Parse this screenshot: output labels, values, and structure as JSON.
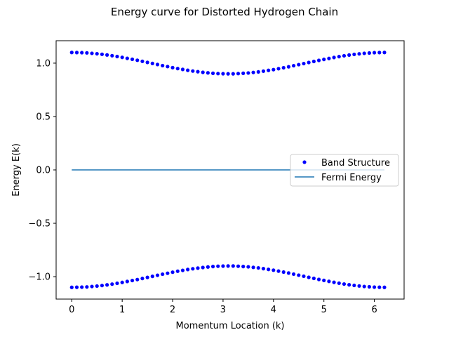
{
  "chart_data": {
    "type": "scatter",
    "title": "Energy curve for Distorted Hydrogen Chain",
    "xlabel": "Momentum Location (k)",
    "ylabel": "Energy E(k)",
    "xlim": [
      -0.31,
      6.59
    ],
    "ylim": [
      -1.21,
      1.21
    ],
    "xticks": [
      0,
      1,
      2,
      3,
      4,
      5,
      6
    ],
    "xtick_labels": [
      "0",
      "1",
      "2",
      "3",
      "4",
      "5",
      "6"
    ],
    "yticks": [
      -1.0,
      -0.5,
      0.0,
      0.5,
      1.0
    ],
    "ytick_labels": [
      "−1.0",
      "−0.5",
      "0.0",
      "0.5",
      "1.0"
    ],
    "grid": false,
    "legend_position": "center-right",
    "band": {
      "name": "Band Structure",
      "color": "#0000ff",
      "upper": [
        [
          0.0,
          1.1
        ],
        [
          0.1,
          1.099
        ],
        [
          0.2,
          1.098
        ],
        [
          0.3,
          1.096
        ],
        [
          0.4,
          1.092
        ],
        [
          0.5,
          1.088
        ],
        [
          0.6,
          1.083
        ],
        [
          0.7,
          1.077
        ],
        [
          0.8,
          1.07
        ],
        [
          0.9,
          1.062
        ],
        [
          1.0,
          1.054
        ],
        [
          1.1,
          1.045
        ],
        [
          1.2,
          1.036
        ],
        [
          1.3,
          1.027
        ],
        [
          1.4,
          1.017
        ],
        [
          1.5,
          1.007
        ],
        [
          1.6,
          0.997
        ],
        [
          1.7,
          0.987
        ],
        [
          1.8,
          0.977
        ],
        [
          1.9,
          0.968
        ],
        [
          2.0,
          0.958
        ],
        [
          2.1,
          0.949
        ],
        [
          2.2,
          0.941
        ],
        [
          2.3,
          0.933
        ],
        [
          2.4,
          0.926
        ],
        [
          2.5,
          0.92
        ],
        [
          2.6,
          0.914
        ],
        [
          2.7,
          0.909
        ],
        [
          2.8,
          0.905
        ],
        [
          2.9,
          0.902
        ],
        [
          3.0,
          0.901
        ],
        [
          3.1,
          0.9
        ],
        [
          3.2,
          0.9
        ],
        [
          3.3,
          0.902
        ],
        [
          3.4,
          0.905
        ],
        [
          3.5,
          0.908
        ],
        [
          3.6,
          0.913
        ],
        [
          3.7,
          0.918
        ],
        [
          3.8,
          0.925
        ],
        [
          3.9,
          0.932
        ],
        [
          4.0,
          0.939
        ],
        [
          4.1,
          0.948
        ],
        [
          4.2,
          0.957
        ],
        [
          4.3,
          0.966
        ],
        [
          4.4,
          0.976
        ],
        [
          4.5,
          0.986
        ],
        [
          4.6,
          0.996
        ],
        [
          4.7,
          1.006
        ],
        [
          4.8,
          1.016
        ],
        [
          4.9,
          1.026
        ],
        [
          5.0,
          1.035
        ],
        [
          5.1,
          1.044
        ],
        [
          5.2,
          1.053
        ],
        [
          5.3,
          1.061
        ],
        [
          5.4,
          1.069
        ],
        [
          5.5,
          1.076
        ],
        [
          5.6,
          1.082
        ],
        [
          5.7,
          1.087
        ],
        [
          5.8,
          1.092
        ],
        [
          5.9,
          1.095
        ],
        [
          6.0,
          1.098
        ],
        [
          6.1,
          1.099
        ],
        [
          6.2,
          1.1
        ]
      ],
      "lower": [
        [
          0.0,
          -1.1
        ],
        [
          0.1,
          -1.099
        ],
        [
          0.2,
          -1.098
        ],
        [
          0.3,
          -1.096
        ],
        [
          0.4,
          -1.092
        ],
        [
          0.5,
          -1.088
        ],
        [
          0.6,
          -1.083
        ],
        [
          0.7,
          -1.077
        ],
        [
          0.8,
          -1.07
        ],
        [
          0.9,
          -1.062
        ],
        [
          1.0,
          -1.054
        ],
        [
          1.1,
          -1.045
        ],
        [
          1.2,
          -1.036
        ],
        [
          1.3,
          -1.027
        ],
        [
          1.4,
          -1.017
        ],
        [
          1.5,
          -1.007
        ],
        [
          1.6,
          -0.997
        ],
        [
          1.7,
          -0.987
        ],
        [
          1.8,
          -0.977
        ],
        [
          1.9,
          -0.968
        ],
        [
          2.0,
          -0.958
        ],
        [
          2.1,
          -0.949
        ],
        [
          2.2,
          -0.941
        ],
        [
          2.3,
          -0.933
        ],
        [
          2.4,
          -0.926
        ],
        [
          2.5,
          -0.92
        ],
        [
          2.6,
          -0.914
        ],
        [
          2.7,
          -0.909
        ],
        [
          2.8,
          -0.905
        ],
        [
          2.9,
          -0.902
        ],
        [
          3.0,
          -0.901
        ],
        [
          3.1,
          -0.9
        ],
        [
          3.2,
          -0.9
        ],
        [
          3.3,
          -0.902
        ],
        [
          3.4,
          -0.905
        ],
        [
          3.5,
          -0.908
        ],
        [
          3.6,
          -0.913
        ],
        [
          3.7,
          -0.918
        ],
        [
          3.8,
          -0.925
        ],
        [
          3.9,
          -0.932
        ],
        [
          4.0,
          -0.939
        ],
        [
          4.1,
          -0.948
        ],
        [
          4.2,
          -0.957
        ],
        [
          4.3,
          -0.966
        ],
        [
          4.4,
          -0.976
        ],
        [
          4.5,
          -0.986
        ],
        [
          4.6,
          -0.996
        ],
        [
          4.7,
          -1.006
        ],
        [
          4.8,
          -1.016
        ],
        [
          4.9,
          -1.026
        ],
        [
          5.0,
          -1.035
        ],
        [
          5.1,
          -1.044
        ],
        [
          5.2,
          -1.053
        ],
        [
          5.3,
          -1.061
        ],
        [
          5.4,
          -1.069
        ],
        [
          5.5,
          -1.076
        ],
        [
          5.6,
          -1.082
        ],
        [
          5.7,
          -1.087
        ],
        [
          5.8,
          -1.092
        ],
        [
          5.9,
          -1.095
        ],
        [
          6.0,
          -1.098
        ],
        [
          6.1,
          -1.099
        ],
        [
          6.2,
          -1.1
        ]
      ]
    },
    "fermi": {
      "name": "Fermi Energy",
      "color": "#1f77b4",
      "x": [
        0.0,
        6.2
      ],
      "y": [
        0.0,
        0.0
      ]
    },
    "legend": [
      "Band Structure",
      "Fermi Energy"
    ]
  }
}
